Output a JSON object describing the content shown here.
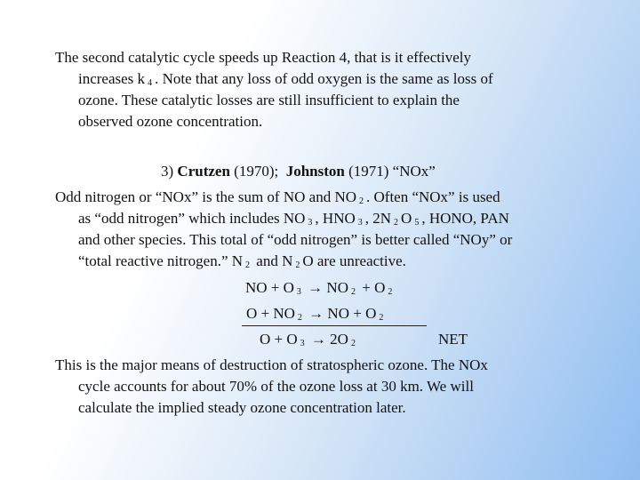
{
  "paragraph1": [
    [
      "The second catalytic cycle speeds up Reaction 4, that is it effectively"
    ],
    [
      "increases k",
      "4",
      ". Note that any loss of odd oxygen is the same as loss of"
    ],
    [
      "ozone. These catalytic losses are still insufficient to explain the"
    ],
    [
      "observed ozone concentration."
    ]
  ],
  "heading": {
    "number": "3)",
    "author1": "Crutzen",
    "year1": "(1970);",
    "author2": "Johnston",
    "year2": "(1971)",
    "topic": "“NOx”"
  },
  "paragraph2": [
    [
      "Odd nitrogen or “NOx” is the sum of NO and NO",
      "2",
      ". Often “NOx” is used"
    ],
    [
      "as “odd nitrogen” which includes NO",
      "3",
      ", HNO",
      "3",
      ", 2N",
      "2",
      "O",
      "5",
      ", HONO, PAN"
    ],
    [
      "and other species. This total of “odd nitrogen” is better called “NOy” or"
    ],
    [
      "“total reactive nitrogen.” N",
      "2",
      " and N",
      "2",
      "O are unreactive."
    ]
  ],
  "equations": {
    "lines": [
      [
        "NO + O",
        "3",
        " → NO",
        "2",
        " + O",
        "2"
      ],
      [
        "O + NO",
        "2",
        " → NO + O",
        "2"
      ],
      [
        "O + O",
        "3",
        " → 2O",
        "2"
      ]
    ],
    "net": "NET"
  },
  "paragraph3": [
    [
      "This is the major means of destruction of stratospheric ozone. The NOx"
    ],
    [
      "cycle accounts for about 70% of the ozone loss at 30 km. We will"
    ],
    [
      "calculate the implied steady ozone concentration later."
    ]
  ]
}
